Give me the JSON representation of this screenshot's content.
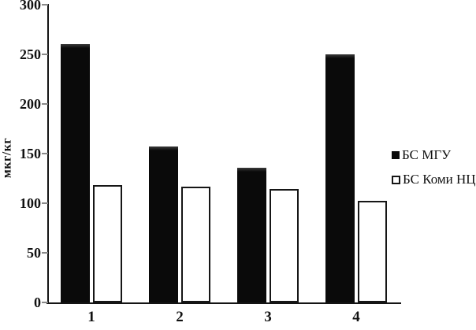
{
  "chart_data": {
    "type": "bar",
    "title": "",
    "xlabel": "",
    "ylabel": "мкг/кг",
    "categories": [
      "1",
      "2",
      "3",
      "4"
    ],
    "series": [
      {
        "name": "БС МГУ",
        "style": "filled",
        "color": "#0b0b0b",
        "values": [
          260,
          157,
          136,
          250
        ]
      },
      {
        "name": "БС Коми НЦ",
        "style": "outlined",
        "color": "#ffffff",
        "values": [
          118,
          117,
          114,
          102
        ]
      }
    ],
    "ylim": [
      0,
      300
    ],
    "yticks": [
      0,
      50,
      100,
      150,
      200,
      250,
      300
    ],
    "grid": false,
    "legend_position": "right",
    "background": "#ffffff",
    "axis_color": "#141414"
  }
}
